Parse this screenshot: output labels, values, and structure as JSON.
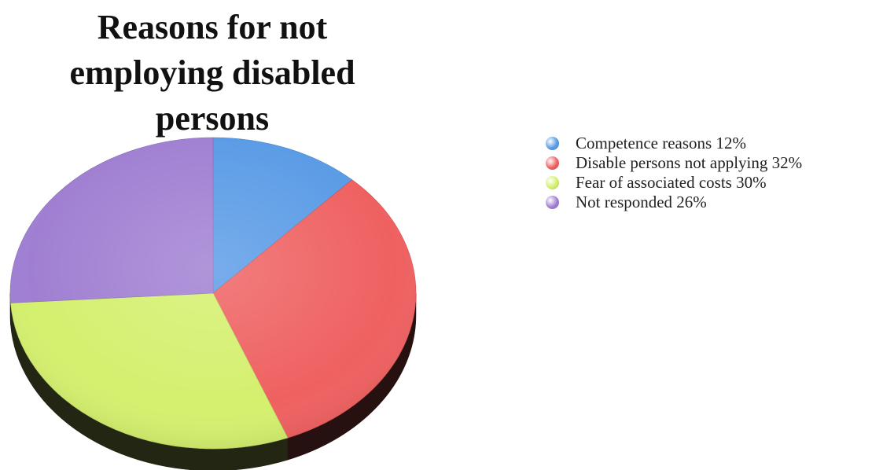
{
  "chart_data": {
    "type": "pie",
    "title_lines": [
      "Reasons for not",
      "employing disabled",
      "persons"
    ],
    "series": [
      {
        "label": "Competence reasons 12%",
        "value": 12,
        "color": "#5a9be6"
      },
      {
        "label": "Disable persons not applying 32%",
        "value": 32,
        "color": "#ef6161"
      },
      {
        "label": "Fear of associated costs 30%",
        "value": 30,
        "color": "#d4f06e"
      },
      {
        "label": "Not responded 26%",
        "value": 26,
        "color": "#a07fd2"
      }
    ],
    "legend_position": "right",
    "style": "3d"
  }
}
